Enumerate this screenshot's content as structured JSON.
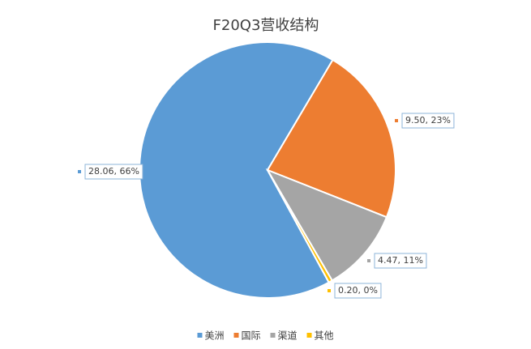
{
  "chart_data": {
    "type": "pie",
    "title": "F20Q3营收结构",
    "categories": [
      "美洲",
      "国际",
      "渠道",
      "其他"
    ],
    "values": [
      28.06,
      9.5,
      4.47,
      0.2
    ],
    "value_labels": [
      "28.06, 66%",
      "9.50, 23%",
      "4.47, 11%",
      "0.20, 0%"
    ],
    "colors": [
      "#5b9bd5",
      "#ed7d31",
      "#a5a5a5",
      "#ffc000"
    ],
    "legend": "bottom"
  }
}
